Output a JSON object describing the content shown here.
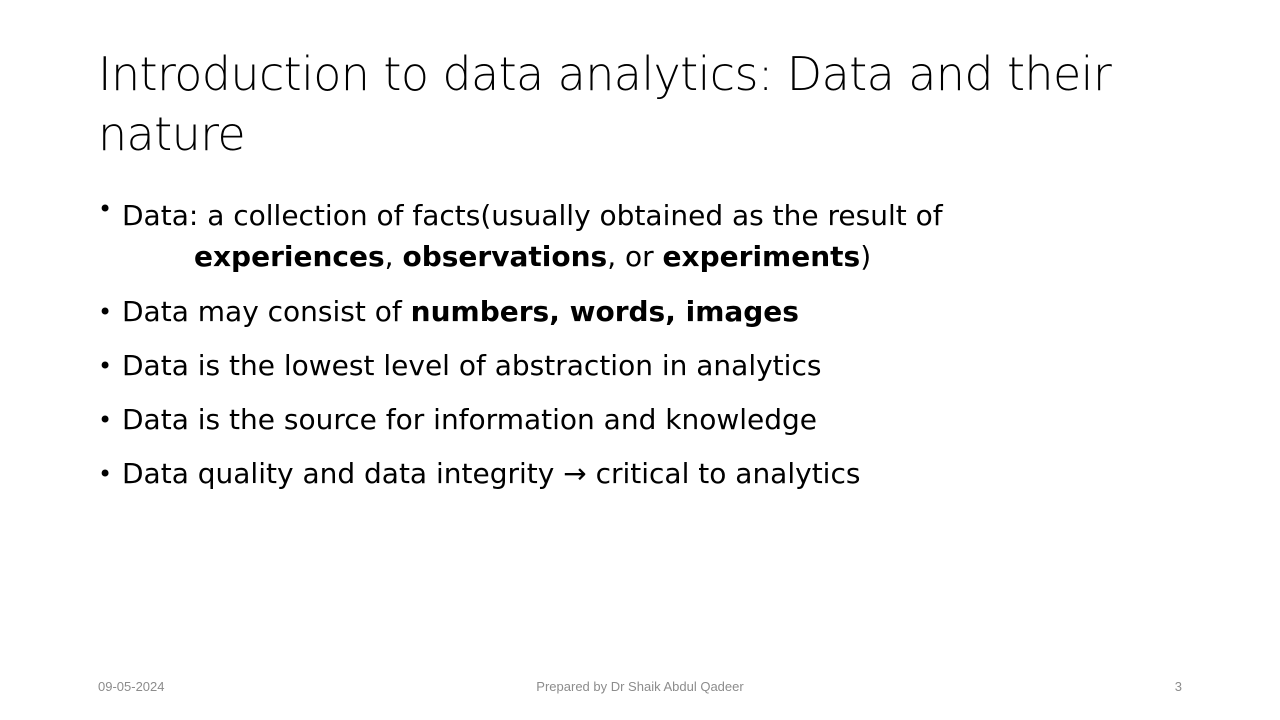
{
  "slide": {
    "title": "Introduction to data analytics: Data and their nature",
    "bullets": [
      {
        "parts": [
          "Data: a collection of facts(usually obtained as the result of",
          "experiences",
          ", ",
          "observations",
          ", or ",
          "experiments",
          ")"
        ]
      },
      {
        "parts": [
          "Data may consist of ",
          "numbers, words, images"
        ]
      },
      {
        "text": "Data is the lowest level of abstraction in analytics"
      },
      {
        "text": "Data is the source for information and knowledge"
      },
      {
        "text": "Data quality and data integrity → critical to analytics"
      }
    ],
    "bullet_glyph": "•"
  },
  "footer": {
    "date": "09-05-2024",
    "author": "Prepared by Dr Shaik Abdul Qadeer",
    "page_number": "3"
  }
}
